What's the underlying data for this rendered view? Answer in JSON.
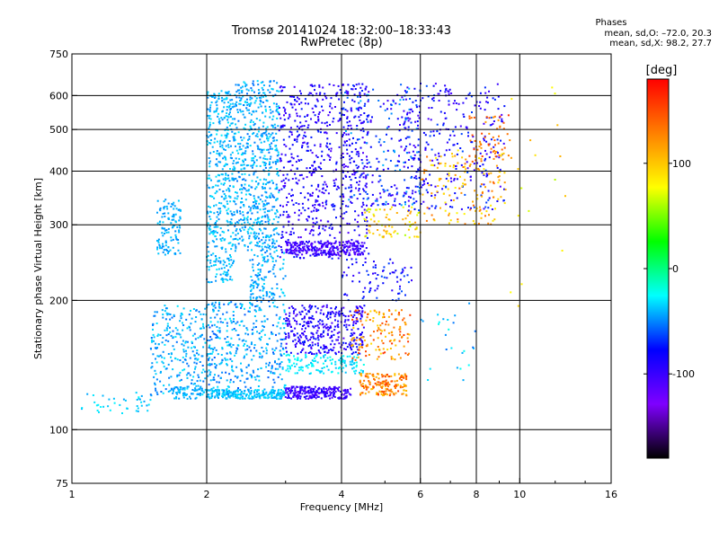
{
  "header": {
    "title_line1": "Tromsø 20141024 18:32:00–18:33:43",
    "title_line2": "RwPretec (8p)",
    "stats_heading": "Phases",
    "stats_line1": "mean, sd,O: –72.0, 20.3",
    "stats_line2": "mean, sd,X:  98.2, 27.7"
  },
  "chart_data": {
    "type": "scatter",
    "xlabel": "Frequency [MHz]",
    "ylabel": "Stationary phase Virtual Height [km]",
    "xscale": "log",
    "yscale": "log",
    "xlim": [
      1,
      16
    ],
    "ylim": [
      75,
      750
    ],
    "xticks": [
      {
        "value": 1,
        "label": "1"
      },
      {
        "value": 2,
        "label": "2"
      },
      {
        "value": 4,
        "label": "4"
      },
      {
        "value": 6,
        "label": "6"
      },
      {
        "value": 8,
        "label": "8"
      },
      {
        "value": 10,
        "label": "10"
      },
      {
        "value": 16,
        "label": "16"
      }
    ],
    "yticks": [
      {
        "value": 75,
        "label": "75"
      },
      {
        "value": 100,
        "label": "100"
      },
      {
        "value": 200,
        "label": "200"
      },
      {
        "value": 300,
        "label": "300"
      },
      {
        "value": 400,
        "label": "400"
      },
      {
        "value": 500,
        "label": "500"
      },
      {
        "value": 600,
        "label": "600"
      },
      {
        "value": 750,
        "label": "750"
      }
    ],
    "grid_x": [
      2,
      4,
      6,
      8,
      10
    ],
    "grid_y": [
      100,
      200,
      300,
      400,
      500,
      600
    ],
    "colorbar": {
      "label": "[deg]",
      "min": -180,
      "max": 180,
      "ticks": [
        {
          "value": 100,
          "label": "100"
        },
        {
          "value": 0,
          "label": "0"
        },
        {
          "value": -100,
          "label": "-100"
        }
      ],
      "colors": [
        "#000000",
        "#7f00ff",
        "#0000ff",
        "#00ffff",
        "#00ff00",
        "#ffff00",
        "#ff8000",
        "#ff0000"
      ]
    },
    "clusters": [
      {
        "f": [
          1.05,
          1.5
        ],
        "h": [
          108,
          122
        ],
        "phase": [
          -45,
          -25
        ],
        "n": 40
      },
      {
        "f": [
          1.55,
          1.75
        ],
        "h": [
          255,
          345
        ],
        "phase": [
          -50,
          -35
        ],
        "n": 120
      },
      {
        "f": [
          1.5,
          2.0
        ],
        "h": [
          120,
          195
        ],
        "phase": [
          -55,
          -30
        ],
        "n": 260
      },
      {
        "f": [
          1.65,
          2.0
        ],
        "h": [
          118,
          126
        ],
        "phase": [
          -50,
          -35
        ],
        "n": 60
      },
      {
        "f": [
          2.0,
          2.3
        ],
        "h": [
          220,
          620
        ],
        "phase": [
          -50,
          -30
        ],
        "n": 420
      },
      {
        "f": [
          2.3,
          2.9
        ],
        "h": [
          260,
          650
        ],
        "phase": [
          -55,
          -30
        ],
        "n": 650
      },
      {
        "f": [
          2.0,
          3.0
        ],
        "h": [
          118,
          200
        ],
        "phase": [
          -60,
          -30
        ],
        "n": 420
      },
      {
        "f": [
          2.0,
          3.0
        ],
        "h": [
          118,
          124
        ],
        "phase": [
          -45,
          -30
        ],
        "n": 200
      },
      {
        "f": [
          2.5,
          3.0
        ],
        "h": [
          200,
          260
        ],
        "phase": [
          -55,
          -30
        ],
        "n": 120
      },
      {
        "f": [
          2.9,
          4.6
        ],
        "h": [
          250,
          640
        ],
        "phase": [
          -110,
          -70
        ],
        "n": 650
      },
      {
        "f": [
          3.0,
          4.5
        ],
        "h": [
          255,
          275
        ],
        "phase": [
          -120,
          -90
        ],
        "n": 250
      },
      {
        "f": [
          3.0,
          4.2
        ],
        "h": [
          118,
          126
        ],
        "phase": [
          -115,
          -85
        ],
        "n": 230
      },
      {
        "f": [
          3.0,
          4.5
        ],
        "h": [
          150,
          195
        ],
        "phase": [
          -110,
          -70
        ],
        "n": 360
      },
      {
        "f": [
          3.0,
          4.5
        ],
        "h": [
          135,
          150
        ],
        "phase": [
          -40,
          -20
        ],
        "n": 140
      },
      {
        "f": [
          4.4,
          5.6
        ],
        "h": [
          120,
          135
        ],
        "phase": [
          100,
          160
        ],
        "n": 170
      },
      {
        "f": [
          4.2,
          5.7
        ],
        "h": [
          145,
          190
        ],
        "phase": [
          90,
          160
        ],
        "n": 140
      },
      {
        "f": [
          4.0,
          5.8
        ],
        "h": [
          200,
          250
        ],
        "phase": [
          -100,
          -60
        ],
        "n": 80
      },
      {
        "f": [
          4.5,
          6.0
        ],
        "h": [
          280,
          330
        ],
        "phase": [
          60,
          120
        ],
        "n": 80
      },
      {
        "f": [
          4.0,
          6.0
        ],
        "h": [
          330,
          640
        ],
        "phase": [
          -110,
          -40
        ],
        "n": 260
      },
      {
        "f": [
          5.5,
          9.3
        ],
        "h": [
          320,
          640
        ],
        "phase": [
          -110,
          -60
        ],
        "n": 300
      },
      {
        "f": [
          6.0,
          9.3
        ],
        "h": [
          300,
          450
        ],
        "phase": [
          80,
          140
        ],
        "n": 140
      },
      {
        "f": [
          7.5,
          9.5
        ],
        "h": [
          420,
          540
        ],
        "phase": [
          110,
          160
        ],
        "n": 60
      },
      {
        "f": [
          6.0,
          8.0
        ],
        "h": [
          130,
          200
        ],
        "phase": [
          -60,
          -20
        ],
        "n": 25
      },
      {
        "f": [
          9.5,
          13.0
        ],
        "h": [
          180,
          640
        ],
        "phase": [
          60,
          120
        ],
        "n": 18
      }
    ]
  }
}
